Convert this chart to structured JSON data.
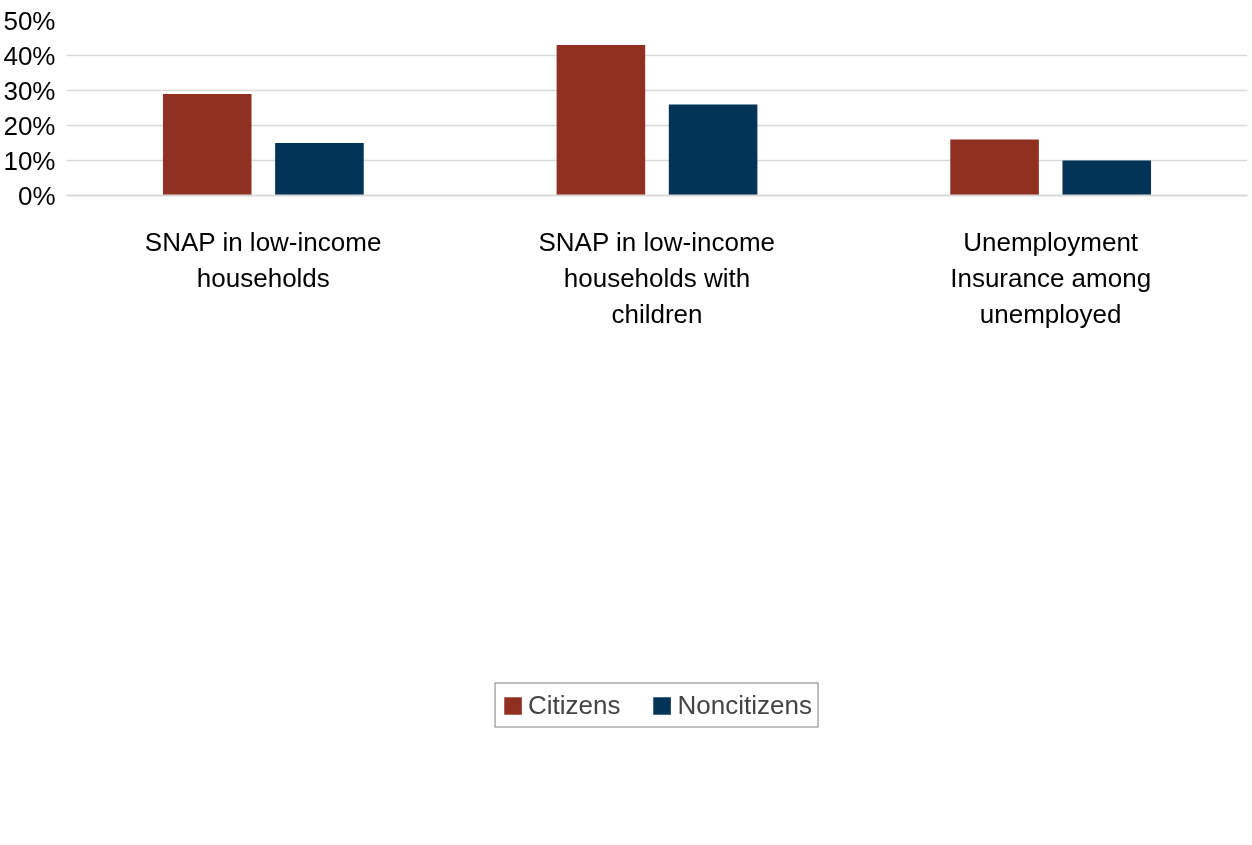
{
  "chart_data": {
    "type": "bar",
    "categories": [
      "SNAP in low-income households",
      "SNAP in low-income households with children",
      "Unemployment Insurance among unemployed"
    ],
    "series": [
      {
        "name": "Citizens",
        "color": "#8f3020",
        "values": [
          29,
          43,
          16
        ]
      },
      {
        "name": "Noncitizens",
        "color": "#033356",
        "values": [
          15,
          26,
          10
        ]
      }
    ],
    "ylim": [
      0,
      50
    ],
    "yticks": [
      {
        "value": 0,
        "label": "0%"
      },
      {
        "value": 10,
        "label": "10%"
      },
      {
        "value": 20,
        "label": "20%"
      },
      {
        "value": 30,
        "label": "30%"
      },
      {
        "value": 40,
        "label": "40%"
      },
      {
        "value": 50,
        "label": "50%"
      }
    ],
    "grid": "y",
    "legend": "bottom"
  }
}
